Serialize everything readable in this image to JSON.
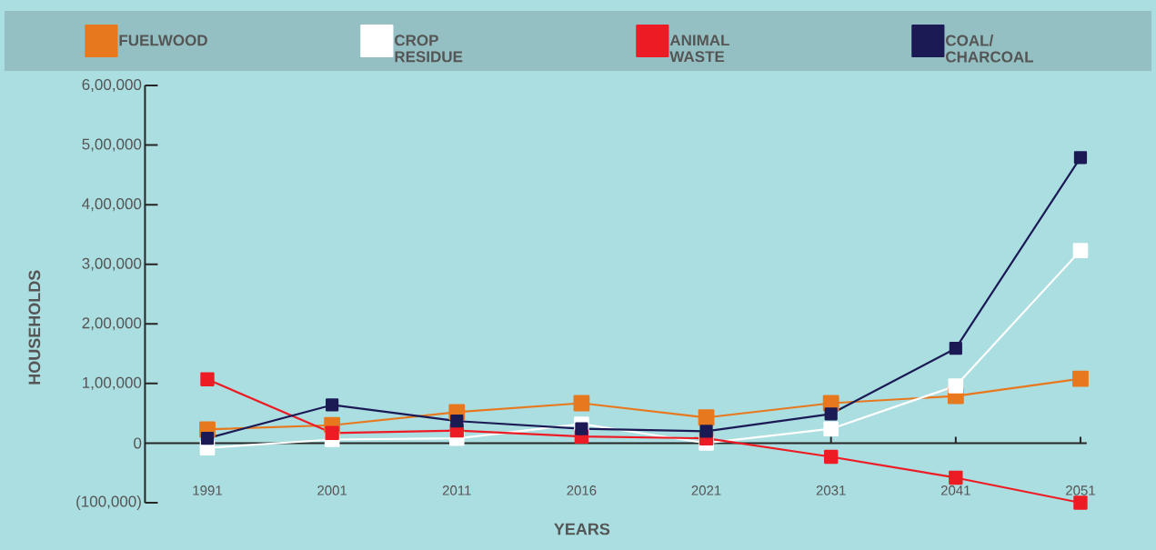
{
  "chart_data": {
    "type": "line",
    "xlabel": "YEARS",
    "ylabel": "HOUSEHOLDS",
    "categories": [
      "1991",
      "2001",
      "2011",
      "2016",
      "2021",
      "2031",
      "2041",
      "2051"
    ],
    "series": [
      {
        "name": "FUELWOOD",
        "color": "#e8781e",
        "values": [
          23000,
          30000,
          52000,
          67000,
          43000,
          67000,
          79000,
          108000
        ]
      },
      {
        "name": "CROP RESIDUE",
        "color": "#ffffff",
        "values": [
          -8000,
          6000,
          8000,
          32000,
          0,
          24000,
          96000,
          323000
        ]
      },
      {
        "name": "ANIMAL WASTE",
        "color": "#ed1c24",
        "values": [
          107000,
          17000,
          21000,
          11000,
          8000,
          -23000,
          -58000,
          -100000
        ]
      },
      {
        "name": "COAL/ CHARCOAL",
        "color": "#1b1a55",
        "values": [
          8000,
          64000,
          37000,
          24000,
          20000,
          49000,
          159000,
          479000
        ]
      }
    ],
    "ylim": [
      -100000,
      600000
    ],
    "yticks": [
      {
        "value": -100000,
        "label": "(100,000)"
      },
      0,
      {
        "value": 100000,
        "label": "1,00,000"
      },
      {
        "value": 200000,
        "label": "2,00,000"
      },
      {
        "value": 300000,
        "label": "3,00,000"
      },
      {
        "value": 400000,
        "label": "4,00,000"
      },
      {
        "value": 500000,
        "label": "5,00,000"
      },
      {
        "value": 600000,
        "label": "6,00,000"
      }
    ],
    "legend": "top",
    "marker": "square",
    "line_style": "solid"
  }
}
